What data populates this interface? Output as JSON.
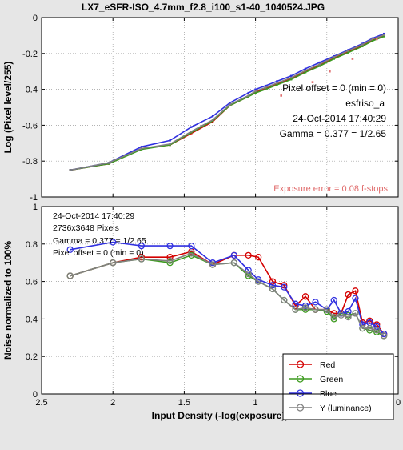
{
  "figure_title": "LX7_eSFR-ISO_4.7mm_f2.8_i100_s1-40_1040524.JPG",
  "chart_data": [
    {
      "type": "line",
      "panel": "top",
      "xlabel": "",
      "ylabel": "Log (Pixel level/255)",
      "xlim": [
        2.5,
        0
      ],
      "ylim": [
        -1,
        0
      ],
      "x_reversed": true,
      "grid": true,
      "xticks": [
        2.5,
        2,
        1.5,
        1,
        0.5,
        0
      ],
      "yticks": [
        -1,
        -0.8,
        -0.6,
        -0.4,
        -0.2,
        0
      ],
      "ytick_labels": [
        "-1",
        "-0.8",
        "-0.6",
        "-0.4",
        "-0.2",
        "0"
      ],
      "annotations": [
        "Pixel offset = 0  (min = 0)",
        "esfriso_a",
        "24-Oct-2014 17:40:29",
        "Gamma = 0.377 = 1/2.65"
      ],
      "exposure_error": "Exposure error = 0.08 f-stops",
      "x": [
        2.3,
        2.03,
        1.8,
        1.6,
        1.45,
        1.3,
        1.18,
        1.05,
        1.0,
        0.93,
        0.85,
        0.75,
        0.65,
        0.55,
        0.45,
        0.35,
        0.25,
        0.18,
        0.1
      ],
      "series": [
        {
          "name": "Red",
          "color": "#d40000",
          "values": [
            -0.85,
            -0.815,
            -0.73,
            -0.71,
            -0.645,
            -0.58,
            -0.49,
            -0.44,
            -0.415,
            -0.395,
            -0.37,
            -0.34,
            -0.3,
            -0.265,
            -0.225,
            -0.19,
            -0.155,
            -0.125,
            -0.1
          ]
        },
        {
          "name": "Green",
          "color": "#3c9a1e",
          "values": [
            -0.85,
            -0.815,
            -0.735,
            -0.71,
            -0.64,
            -0.575,
            -0.49,
            -0.44,
            -0.42,
            -0.4,
            -0.375,
            -0.345,
            -0.305,
            -0.27,
            -0.23,
            -0.195,
            -0.16,
            -0.13,
            -0.105
          ]
        },
        {
          "name": "Blue",
          "color": "#3030e0",
          "values": [
            -0.85,
            -0.81,
            -0.72,
            -0.685,
            -0.61,
            -0.55,
            -0.475,
            -0.42,
            -0.4,
            -0.38,
            -0.355,
            -0.325,
            -0.285,
            -0.25,
            -0.215,
            -0.18,
            -0.145,
            -0.115,
            -0.09
          ]
        },
        {
          "name": "Y (luminance)",
          "color": "#808080",
          "values": [
            -0.85,
            -0.81,
            -0.73,
            -0.705,
            -0.635,
            -0.57,
            -0.485,
            -0.435,
            -0.41,
            -0.39,
            -0.365,
            -0.335,
            -0.295,
            -0.26,
            -0.22,
            -0.185,
            -0.15,
            -0.12,
            -0.097
          ]
        }
      ],
      "outlier_points": [
        {
          "x": 0.82,
          "y": -0.435
        },
        {
          "x": 0.6,
          "y": -0.36
        },
        {
          "x": 0.48,
          "y": -0.3
        },
        {
          "x": 0.32,
          "y": -0.23
        },
        {
          "x": 0.15,
          "y": -0.12
        }
      ]
    },
    {
      "type": "line",
      "panel": "bottom",
      "xlabel": "Input Density (-log(exposure))",
      "ylabel": "Noise  normalized to 100%",
      "xlim": [
        2.5,
        0
      ],
      "ylim": [
        0,
        1
      ],
      "x_reversed": true,
      "grid": true,
      "xticks": [
        2.5,
        2,
        1.5,
        1,
        0.5,
        0
      ],
      "xtick_labels": [
        "2.5",
        "2",
        "1.5",
        "1",
        "0.5",
        "0"
      ],
      "yticks": [
        0,
        0.2,
        0.4,
        0.6,
        0.8,
        1
      ],
      "ytick_labels": [
        "0",
        "0.2",
        "0.4",
        "0.6",
        "0.8",
        "1"
      ],
      "annotations": [
        "24-Oct-2014 17:40:29",
        "2736x3648 Pixels",
        "Gamma = 0.377 = 1/2.65",
        "Pixel offset = 0  (min = 0)"
      ],
      "legend_position": "bottom-right",
      "series": [
        {
          "name": "Red",
          "color": "#d40000",
          "x": [
            2.3,
            2.0,
            1.8,
            1.6,
            1.45,
            1.3,
            1.15,
            1.05,
            0.98,
            0.88,
            0.8,
            0.72,
            0.65,
            0.58,
            0.5,
            0.45,
            0.4,
            0.35,
            0.3,
            0.25,
            0.2,
            0.15,
            0.1
          ],
          "values": [
            0.63,
            0.7,
            0.73,
            0.73,
            0.76,
            0.69,
            0.74,
            0.74,
            0.73,
            0.6,
            0.58,
            0.47,
            0.52,
            0.45,
            0.45,
            0.43,
            0.43,
            0.53,
            0.55,
            0.38,
            0.39,
            0.37,
            0.32
          ]
        },
        {
          "name": "Green",
          "color": "#3c9a1e",
          "x": [
            2.3,
            2.0,
            1.8,
            1.6,
            1.45,
            1.3,
            1.15,
            1.05,
            0.98,
            0.88,
            0.8,
            0.72,
            0.65,
            0.58,
            0.5,
            0.45,
            0.4,
            0.35,
            0.3,
            0.25,
            0.2,
            0.15,
            0.1
          ],
          "values": [
            0.63,
            0.7,
            0.72,
            0.7,
            0.74,
            0.69,
            0.7,
            0.63,
            0.6,
            0.56,
            0.5,
            0.45,
            0.45,
            0.45,
            0.44,
            0.4,
            0.43,
            0.42,
            0.43,
            0.35,
            0.34,
            0.33,
            0.31
          ]
        },
        {
          "name": "Blue",
          "color": "#3030e0",
          "x": [
            2.3,
            2.0,
            1.8,
            1.6,
            1.45,
            1.3,
            1.15,
            1.05,
            0.98,
            0.88,
            0.8,
            0.72,
            0.65,
            0.58,
            0.5,
            0.45,
            0.4,
            0.35,
            0.3,
            0.25,
            0.2,
            0.15,
            0.1
          ],
          "values": [
            0.77,
            0.81,
            0.79,
            0.79,
            0.79,
            0.7,
            0.74,
            0.66,
            0.61,
            0.58,
            0.57,
            0.48,
            0.47,
            0.49,
            0.45,
            0.5,
            0.43,
            0.44,
            0.51,
            0.37,
            0.38,
            0.36,
            0.32
          ]
        },
        {
          "name": "Y (luminance)",
          "color": "#808080",
          "x": [
            2.3,
            2.0,
            1.8,
            1.6,
            1.45,
            1.3,
            1.15,
            1.05,
            0.98,
            0.88,
            0.8,
            0.72,
            0.65,
            0.58,
            0.5,
            0.45,
            0.4,
            0.35,
            0.3,
            0.25,
            0.2,
            0.15,
            0.1
          ],
          "values": [
            0.63,
            0.7,
            0.72,
            0.71,
            0.75,
            0.69,
            0.7,
            0.64,
            0.6,
            0.56,
            0.5,
            0.45,
            0.46,
            0.45,
            0.45,
            0.41,
            0.42,
            0.41,
            0.43,
            0.35,
            0.35,
            0.34,
            0.31
          ]
        }
      ]
    }
  ]
}
